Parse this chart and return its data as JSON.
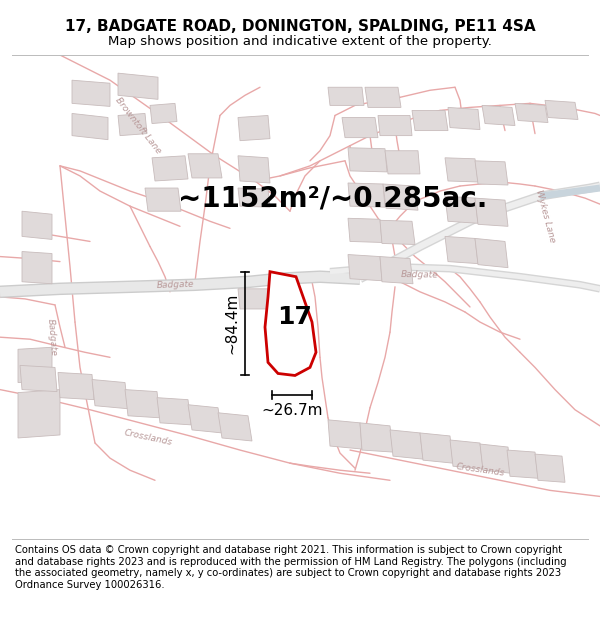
{
  "title_line1": "17, BADGATE ROAD, DONINGTON, SPALDING, PE11 4SA",
  "title_line2": "Map shows position and indicative extent of the property.",
  "area_text": "~1152m²/~0.285ac.",
  "property_number": "17",
  "dim_height": "~84.4m",
  "dim_width": "~26.7m",
  "footer_text": "Contains OS data © Crown copyright and database right 2021. This information is subject to Crown copyright and database rights 2023 and is reproduced with the permission of HM Land Registry. The polygons (including the associated geometry, namely x, y co-ordinates) are subject to Crown copyright and database rights 2023 Ordnance Survey 100026316.",
  "map_bg": "#f9f6f6",
  "road_color": "#e8a8a8",
  "road_lw": 1.0,
  "road_lw_main": 1.8,
  "building_fill": "#e0dada",
  "building_edge": "#c8bcbc",
  "building_lw": 0.6,
  "property_fill": "#ffffff",
  "property_edge": "#cc0000",
  "property_lw": 2.0,
  "road_label_color": "#b89898",
  "road_label_fs": 6.5,
  "title_fontsize": 11,
  "subtitle_fontsize": 9.5,
  "area_fontsize": 20,
  "number_fontsize": 18,
  "dim_fontsize": 11,
  "footer_fontsize": 7.2,
  "sep_color": "#bbbbbb",
  "wykes_lane_color": "#d0d8e0"
}
